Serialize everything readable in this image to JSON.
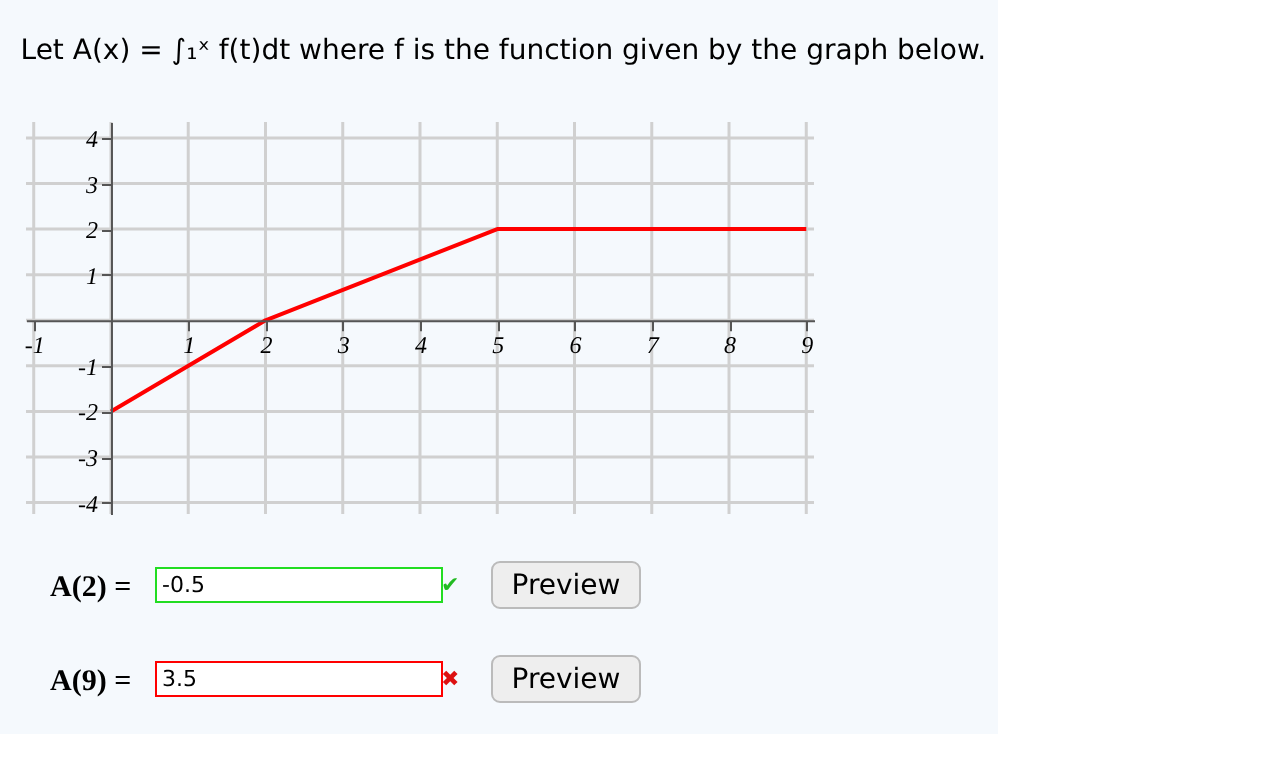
{
  "chart_data": {
    "type": "line",
    "title": "Let A(x) = ∫₁ˣ f(t)dt where f is the function given by the graph below.",
    "x": [
      0,
      2,
      5,
      9
    ],
    "series": [
      {
        "color": "#ff0000",
        "values": [
          -2,
          0,
          2,
          2
        ]
      }
    ],
    "xlim": [
      -1.1,
      9.1
    ],
    "ylim": [
      -4.25,
      4.35
    ],
    "xticks": [
      -1,
      1,
      2,
      3,
      4,
      5,
      6,
      7,
      8,
      9
    ],
    "yticks": [
      -4,
      -3,
      -2,
      -1,
      1,
      2,
      3,
      4
    ],
    "grid": true,
    "marker": "none",
    "line_style": "solid",
    "annotations": [
      "A(2) =",
      "-0.5",
      "✔",
      "Preview",
      "A(9) =",
      "3.5",
      "✖",
      "Preview"
    ]
  }
}
